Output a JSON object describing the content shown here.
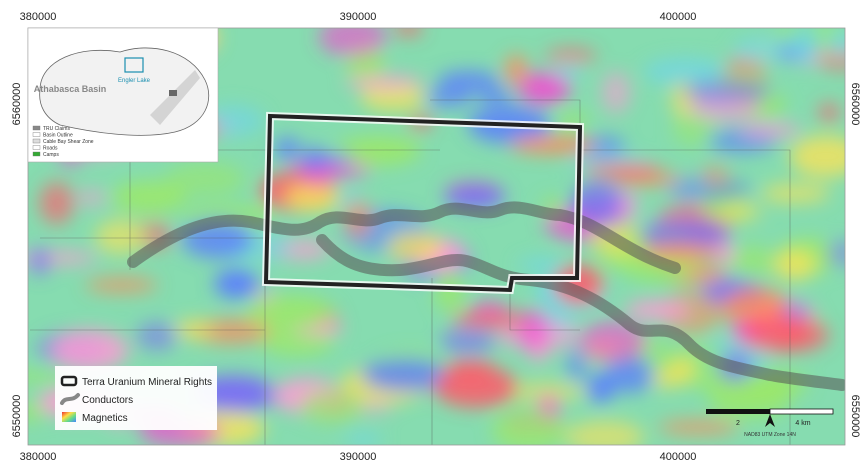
{
  "map": {
    "grid_labels": {
      "top": [
        "380000",
        "390000",
        "400000"
      ],
      "bottom": [
        "380000",
        "390000",
        "400000"
      ],
      "left": [
        "6560000",
        "6550000"
      ],
      "right": [
        "6560000",
        "6550000"
      ]
    },
    "inset": {
      "basin_label": "Athabasca Basin",
      "lake_label": "Engler Lake",
      "legend": [
        "TRU Claims",
        "Basin Outline",
        "Cable Bay Shear Zone",
        "Roads",
        "Camps"
      ]
    },
    "legend": [
      "Terra Uranium Mineral Rights",
      "Conductors",
      "Magnetics"
    ],
    "scale_bar": {
      "labels": [
        "2",
        "4 km"
      ],
      "projection": "NAD83 UTM Zone 14N"
    }
  }
}
